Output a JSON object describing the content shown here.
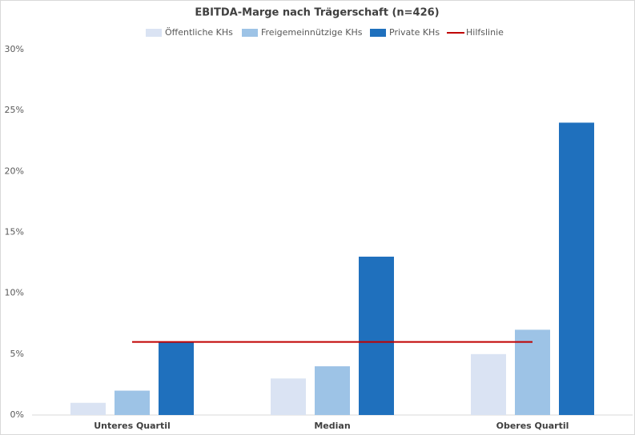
{
  "chart_data": {
    "type": "bar",
    "title": "EBITDA-Marge nach Trägerschaft (n=426)",
    "categories": [
      "Unteres Quartil",
      "Median",
      "Oberes Quartil"
    ],
    "series": [
      {
        "name": "Öffentliche KHs",
        "color": "#dae3f3",
        "values": [
          1,
          3,
          5
        ]
      },
      {
        "name": "Freigemeinnützige KHs",
        "color": "#9dc3e6",
        "values": [
          2,
          4,
          7
        ]
      },
      {
        "name": "Private KHs",
        "color": "#1f70bd",
        "values": [
          6,
          13,
          24
        ]
      },
      {
        "name": "Hilfslinie",
        "color": "#c00000",
        "type": "line",
        "values": [
          6,
          6,
          6
        ]
      }
    ],
    "ylim": [
      0,
      30
    ],
    "yticks": [
      {
        "value": 0,
        "label": "0%"
      },
      {
        "value": 5,
        "label": "5%"
      },
      {
        "value": 10,
        "label": "10%"
      },
      {
        "value": 15,
        "label": "15%"
      },
      {
        "value": 20,
        "label": "20%"
      },
      {
        "value": 25,
        "label": "25%"
      },
      {
        "value": 30,
        "label": "30%"
      }
    ],
    "grid": false,
    "legend": "top"
  }
}
